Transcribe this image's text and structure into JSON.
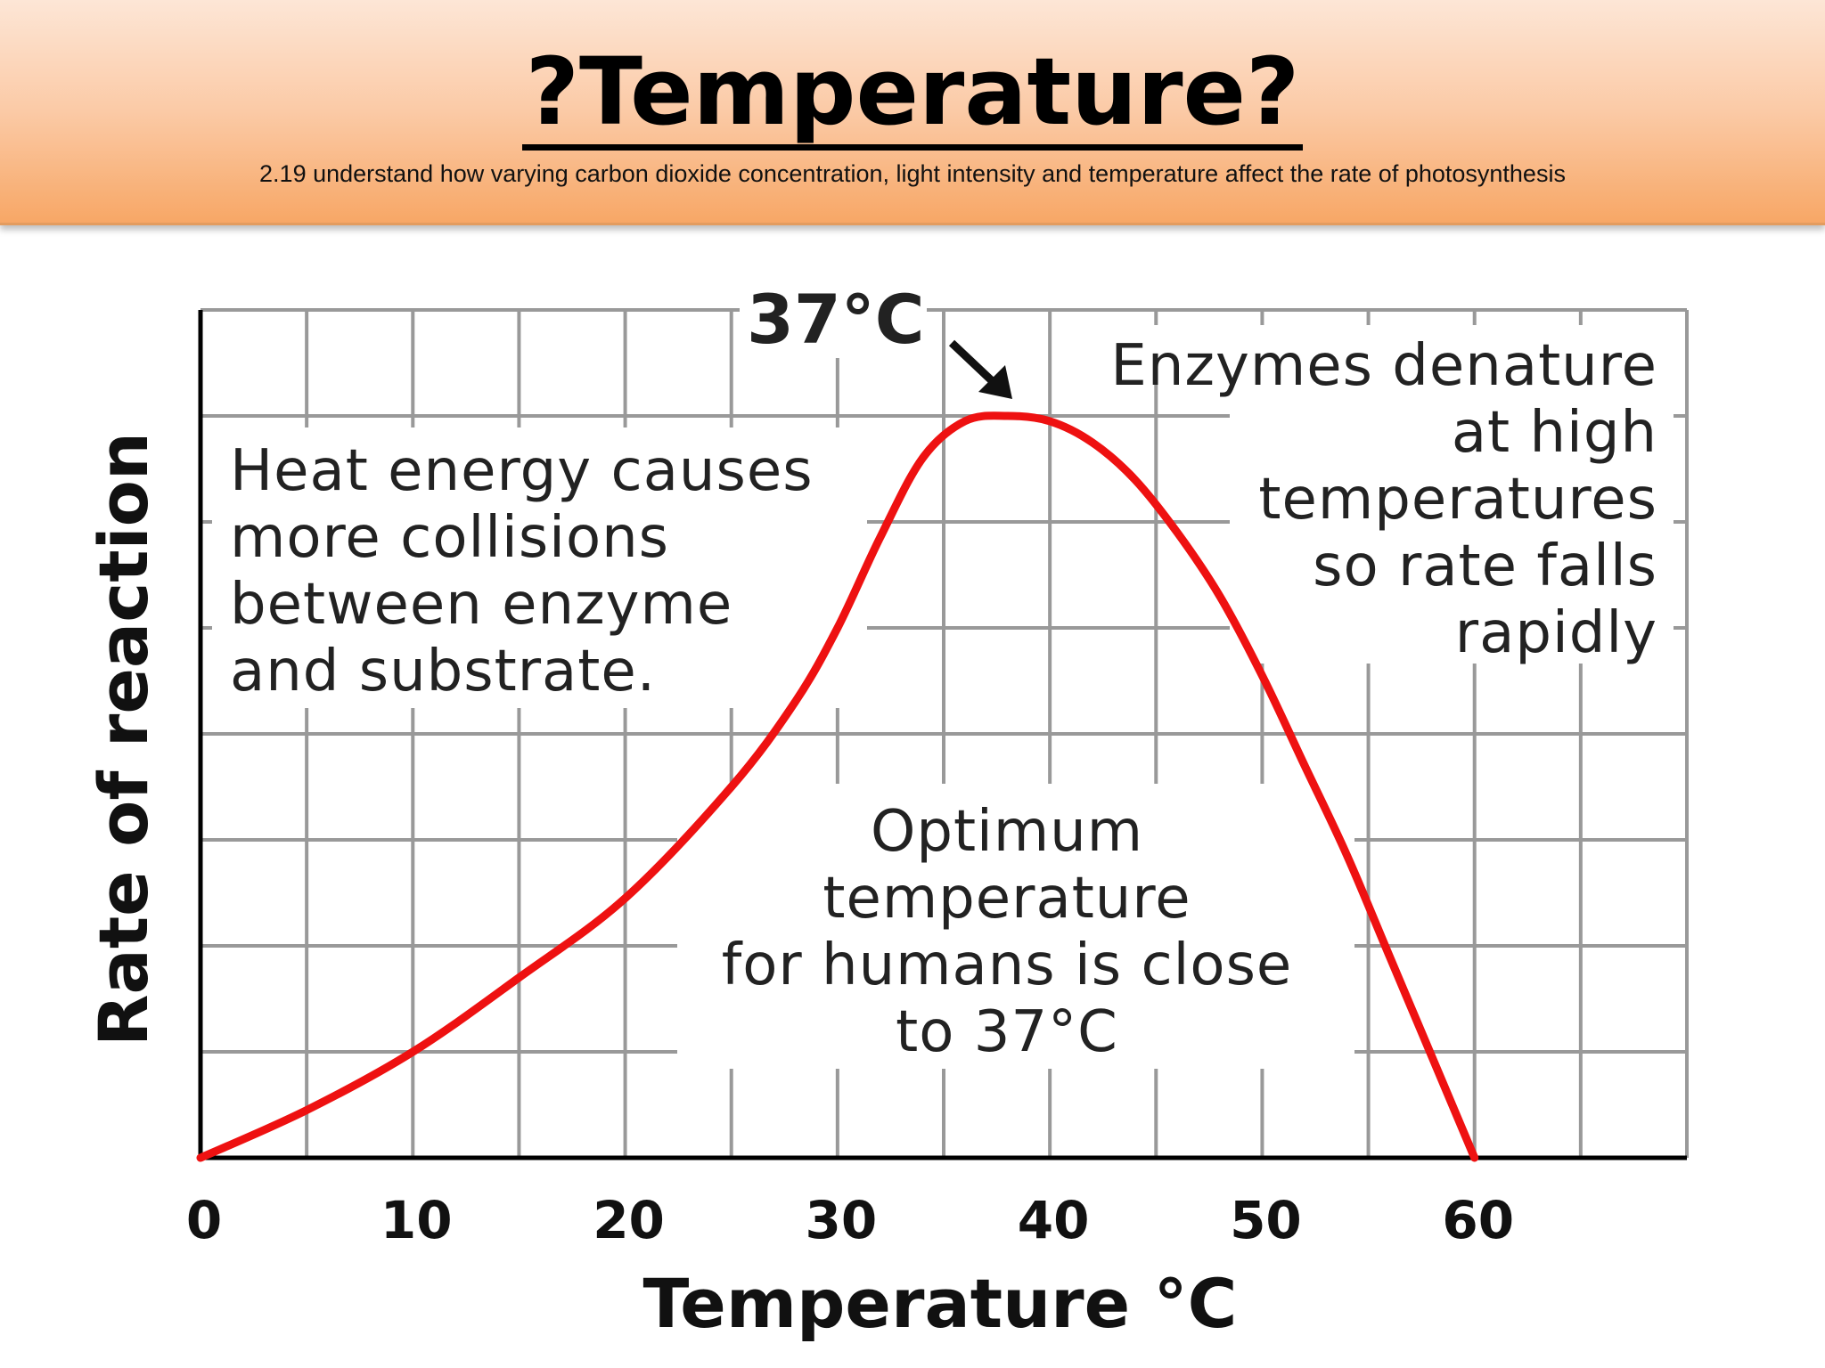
{
  "header": {
    "title": "?Temperature?",
    "subtitle": "2.19 understand how varying carbon dioxide concentration, light intensity and temperature affect the rate of photosynthesis"
  },
  "colors": {
    "curve": "#ee1111",
    "grid": "#999999",
    "axis": "#000000",
    "header_top": "#fde6d6",
    "header_bottom": "#f7a766"
  },
  "chart_data": {
    "type": "line",
    "xlabel": "Temperature °C",
    "ylabel": "Rate of reaction",
    "xlim": [
      0,
      70
    ],
    "ylim": [
      0,
      8
    ],
    "x_ticks": [
      "0",
      "10",
      "20",
      "30",
      "40",
      "50",
      "60"
    ],
    "grid": true,
    "y_tick_labels": false,
    "series": [
      {
        "x": [
          0,
          5,
          10,
          15,
          20,
          25,
          28,
          30,
          32,
          34,
          36,
          38,
          40,
          42,
          44,
          46,
          48,
          50,
          52,
          54,
          56,
          58,
          60
        ],
        "y": [
          0.0,
          0.45,
          1.0,
          1.7,
          2.45,
          3.5,
          4.3,
          5.0,
          5.85,
          6.6,
          6.95,
          7.0,
          6.95,
          6.75,
          6.4,
          5.9,
          5.3,
          4.55,
          3.7,
          2.85,
          1.9,
          0.95,
          0.0
        ]
      }
    ],
    "annotations": {
      "peak_label": "37°C",
      "left": [
        "Heat energy causes",
        "more collisions",
        "between enzyme",
        "and substrate."
      ],
      "right": [
        "Enzymes denature",
        "at high",
        "temperatures",
        "so rate falls",
        "rapidly"
      ],
      "center": [
        "Optimum",
        "temperature",
        "for humans is close",
        "to 37°C"
      ]
    }
  }
}
